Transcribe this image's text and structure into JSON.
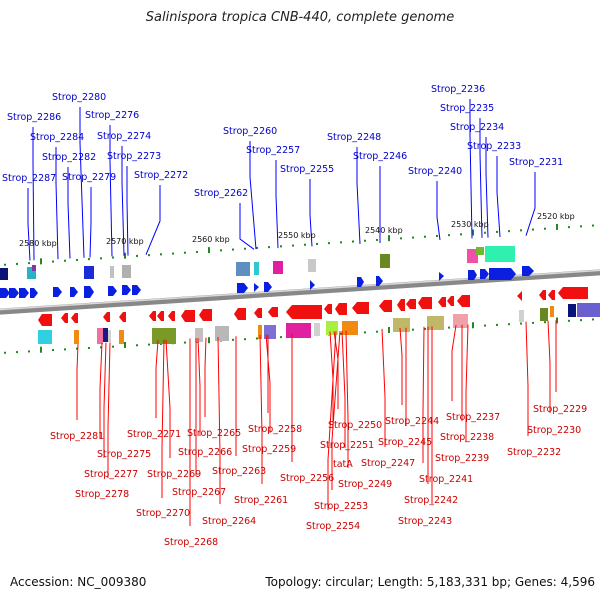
{
  "title": "Salinispora tropica CNB-440, complete genome",
  "accession": "Accession: NC_009380",
  "summary": "Topology: circular; Length: 5,183,331 bp; Genes: 4,596",
  "kbp_labels": [
    "2580 kbp",
    "2570 kbp",
    "2560 kbp",
    "2550 kbp",
    "2540 kbp",
    "2530 kbp",
    "2520 kbp"
  ],
  "top_genes": [
    "Strop_2287",
    "Strop_2286",
    "Strop_2284",
    "Strop_2282",
    "Strop_2280",
    "Strop_2279",
    "Strop_2276",
    "Strop_2274",
    "Strop_2273",
    "Strop_2272",
    "Strop_2262",
    "Strop_2260",
    "Strop_2257",
    "Strop_2255",
    "Strop_2248",
    "Strop_2246",
    "Strop_2240",
    "Strop_2236",
    "Strop_2235",
    "Strop_2234",
    "Strop_2233",
    "Strop_2231"
  ],
  "bottom_genes": [
    "Strop_2281",
    "Strop_2275",
    "Strop_2277",
    "Strop_2278",
    "Strop_2271",
    "Strop_2269",
    "Strop_2270",
    "Strop_2268",
    "Strop_2266",
    "Strop_2267",
    "Strop_2265",
    "Strop_2264",
    "Strop_2263",
    "Strop_2261",
    "Strop_2258",
    "Strop_2259",
    "Strop_2256",
    "Strop_2250",
    "Strop_2251",
    "tatA",
    "Strop_2249",
    "Strop_2253",
    "Strop_2254",
    "Strop_2247",
    "Strop_2244",
    "Strop_2245",
    "Strop_2241",
    "Strop_2242",
    "Strop_2243",
    "Strop_2237",
    "Strop_2238",
    "Strop_2239",
    "Strop_2229",
    "Strop_2230",
    "Strop_2232"
  ],
  "colors": {
    "forward": "#0000ff",
    "reverse": "#ff0000",
    "backbone": "#888888",
    "tick": "#228822"
  }
}
